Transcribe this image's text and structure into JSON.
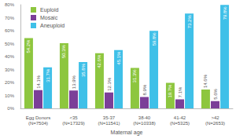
{
  "chart_data": {
    "type": "bar",
    "categories": [
      "Egg Donors\n(N=7504)",
      "<35\n(N=17329)",
      "35-37\n(N=11541)",
      "38-40\n(N=10338)",
      "41-42\n(N=5325)",
      ">42\n(N=2653)"
    ],
    "x_label": "Maternal age",
    "series": [
      {
        "name": "Euploid",
        "color": "#8dc63f",
        "values": [
          54.2,
          50.3,
          42.6,
          31.3,
          19.7,
          14.6
        ],
        "value_labels": [
          "54.2%",
          "50.3%",
          "42.6%",
          "31.3%",
          "19.7%",
          "14.6%"
        ]
      },
      {
        "name": "Mosaic",
        "color": "#7b3f98",
        "values": [
          14.1,
          13.9,
          12.3,
          8.9,
          7.1,
          5.6
        ],
        "value_labels": [
          "14.1%",
          "13.9%",
          "12.3%",
          "8.9%",
          "7.1%",
          "5.6%"
        ]
      },
      {
        "name": "Aneuploid",
        "color": "#3fc0e8",
        "values": [
          31.7,
          35.8,
          45.1,
          59.8,
          73.2,
          79.8
        ],
        "value_labels": [
          "31.7%",
          "35.8%",
          "45.1%",
          "59.8%",
          "73.2%",
          "79.8%"
        ]
      }
    ],
    "ylim": [
      0,
      80
    ],
    "yticks": [
      {
        "value": 0,
        "label": "0%"
      },
      {
        "value": 10,
        "label": "10%"
      },
      {
        "value": 20,
        "label": "20%"
      },
      {
        "value": 30,
        "label": "30%"
      },
      {
        "value": 40,
        "label": "40%"
      },
      {
        "value": 50,
        "label": "50%"
      },
      {
        "value": 60,
        "label": "60%"
      },
      {
        "value": 70,
        "label": "70%"
      },
      {
        "value": 80,
        "label": "80%"
      }
    ],
    "grid": false,
    "legend": "upper left",
    "data_labels": true
  }
}
